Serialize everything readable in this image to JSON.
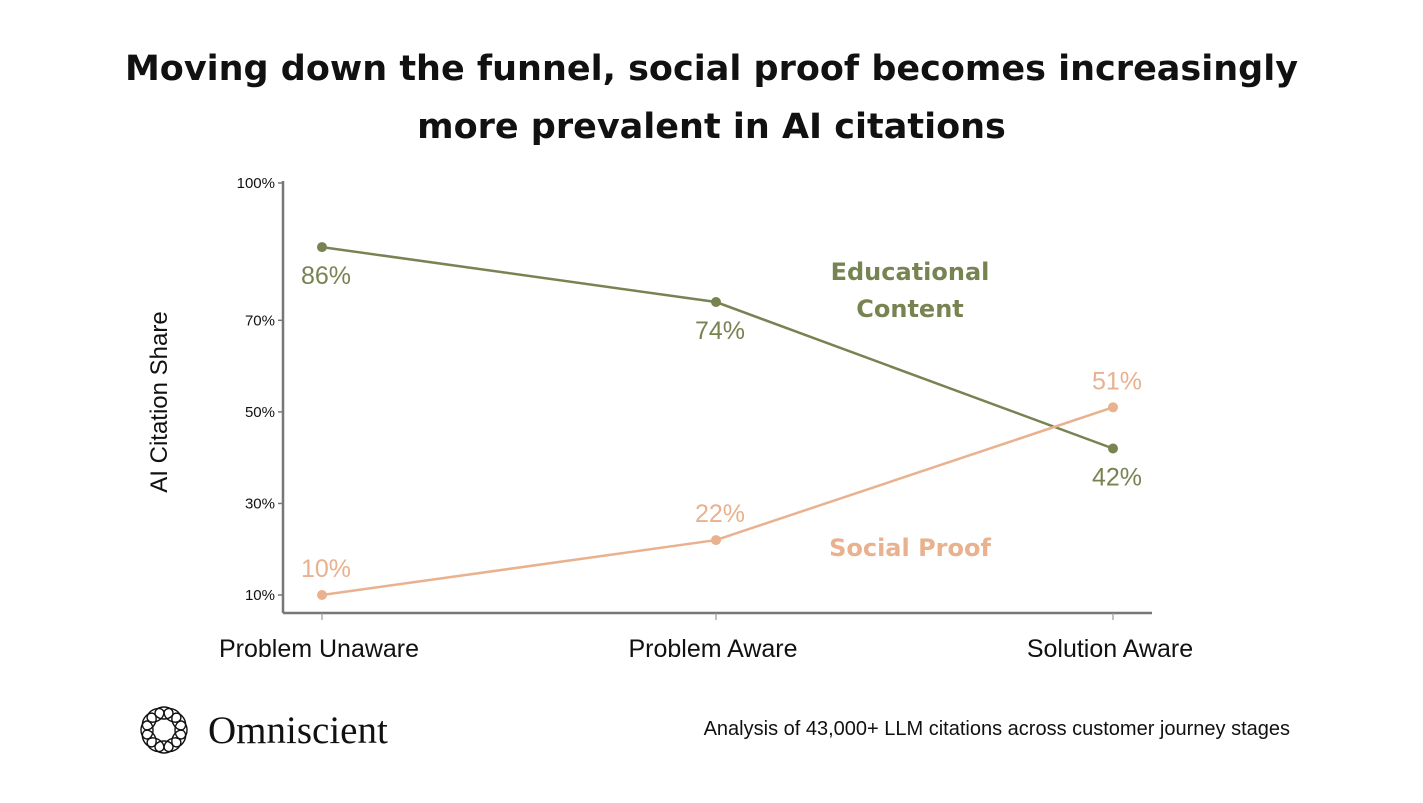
{
  "chart_data": {
    "type": "line",
    "title": "Moving down the funnel, social proof becomes increasingly more prevalent in AI citations",
    "title_lines": [
      "Moving down the funnel, social proof becomes increasingly",
      "more prevalent in AI citations"
    ],
    "xlabel": "",
    "ylabel": "AI Citation Share",
    "categories": [
      "Problem Unaware",
      "Problem Aware",
      "Solution Aware"
    ],
    "ylim": [
      10,
      100
    ],
    "yticks": [
      10,
      30,
      50,
      70,
      100
    ],
    "ytick_labels": [
      "10%",
      "30%",
      "50%",
      "70%",
      "100%"
    ],
    "grid": false,
    "series": [
      {
        "name": "Educational Content",
        "label_lines": [
          "Educational",
          "Content"
        ],
        "color": "#788352",
        "values": [
          86,
          74,
          42
        ],
        "data_labels": [
          "86%",
          "74%",
          "42%"
        ],
        "label_position": [
          "below",
          "below",
          "below"
        ]
      },
      {
        "name": "Social Proof",
        "label_lines": [
          "Social Proof"
        ],
        "color": "#e9b18e",
        "values": [
          10,
          22,
          51
        ],
        "data_labels": [
          "10%",
          "22%",
          "51%"
        ],
        "label_position": [
          "above",
          "above",
          "above"
        ]
      }
    ],
    "legend": "inline"
  },
  "footer": {
    "brand": "Omniscient",
    "note": "Analysis of 43,000+ LLM citations across customer journey stages"
  }
}
